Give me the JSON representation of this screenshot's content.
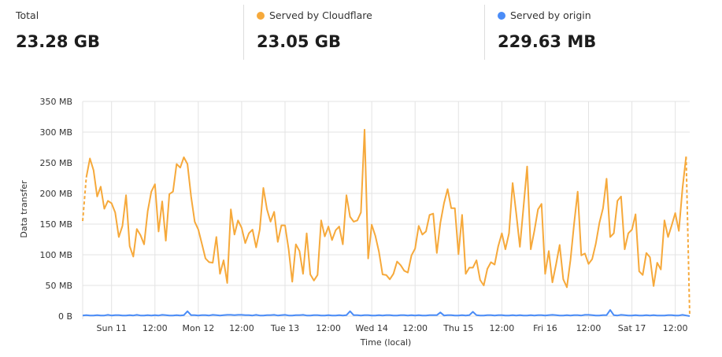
{
  "summary": {
    "total": {
      "label": "Total",
      "value": "23.28 GB"
    },
    "cloudflare": {
      "label": "Served by Cloudflare",
      "value": "23.05 GB",
      "color": "#f6a93b"
    },
    "origin": {
      "label": "Served by origin",
      "value": "229.63 MB",
      "color": "#4a8cf7"
    }
  },
  "chart_data": {
    "type": "line",
    "xlabel": "Time (local)",
    "ylabel": "Data transfer",
    "ylim": [
      0,
      350
    ],
    "yticks": [
      0,
      50,
      100,
      150,
      200,
      250,
      300,
      350
    ],
    "ytick_labels": [
      "0 B",
      "50 MB",
      "100 MB",
      "150 MB",
      "200 MB",
      "250 MB",
      "300 MB",
      "350 MB"
    ],
    "x_start": "Sat 10 16:00",
    "x_step": "1 hour",
    "xticks": [
      {
        "hour": 8,
        "label": "Sun 11"
      },
      {
        "hour": 20,
        "label": "12:00"
      },
      {
        "hour": 32,
        "label": "Mon 12"
      },
      {
        "hour": 44,
        "label": "12:00"
      },
      {
        "hour": 56,
        "label": "Tue 13"
      },
      {
        "hour": 68,
        "label": "12:00"
      },
      {
        "hour": 80,
        "label": "Wed 14"
      },
      {
        "hour": 92,
        "label": "12:00"
      },
      {
        "hour": 104,
        "label": "Thu 15"
      },
      {
        "hour": 116,
        "label": "12:00"
      },
      {
        "hour": 128,
        "label": "Fri 16"
      },
      {
        "hour": 140,
        "label": "12:00"
      },
      {
        "hour": 152,
        "label": "Sat 17"
      },
      {
        "hour": 164,
        "label": "12:00"
      }
    ],
    "grid": true,
    "series": [
      {
        "name": "Served by Cloudflare",
        "color": "#f6a93b",
        "dashed_ends": true,
        "values": [
          155,
          226,
          257,
          238,
          195,
          211,
          175,
          188,
          184,
          169,
          129,
          147,
          197,
          114,
          97,
          142,
          132,
          117,
          171,
          203,
          215,
          138,
          187,
          123,
          199,
          203,
          248,
          242,
          259,
          248,
          195,
          154,
          141,
          118,
          94,
          88,
          87,
          129,
          69,
          91,
          54,
          174,
          133,
          156,
          144,
          119,
          135,
          141,
          112,
          141,
          209,
          174,
          154,
          170,
          121,
          148,
          148,
          109,
          56,
          117,
          106,
          69,
          135,
          68,
          58,
          67,
          156,
          130,
          146,
          124,
          140,
          146,
          117,
          197,
          162,
          154,
          156,
          169,
          304,
          94,
          149,
          131,
          105,
          68,
          67,
          60,
          69,
          89,
          83,
          74,
          71,
          99,
          110,
          147,
          133,
          138,
          165,
          167,
          103,
          152,
          184,
          207,
          176,
          176,
          101,
          165,
          69,
          79,
          79,
          91,
          59,
          50,
          77,
          88,
          84,
          114,
          135,
          109,
          135,
          217,
          167,
          113,
          178,
          244,
          109,
          139,
          174,
          183,
          69,
          106,
          55,
          84,
          116,
          60,
          47,
          92,
          150,
          203,
          99,
          102,
          85,
          93,
          118,
          152,
          176,
          224,
          129,
          135,
          188,
          195,
          109,
          135,
          141,
          166,
          73,
          67,
          103,
          96,
          49,
          87,
          76,
          156,
          129,
          148,
          168,
          139,
          208,
          260,
          0
        ]
      },
      {
        "name": "Served by origin",
        "color": "#4a8cf7",
        "values": [
          1,
          1.5,
          1,
          1,
          1.5,
          1,
          1,
          2,
          1,
          1.5,
          1.5,
          1,
          1,
          1.5,
          1,
          2,
          1,
          1,
          1.5,
          1,
          1.5,
          1,
          2,
          1.5,
          1,
          1,
          1.5,
          1,
          1.5,
          8,
          1.5,
          1.5,
          1,
          1.5,
          1.5,
          1,
          2,
          1.5,
          1,
          1.5,
          2,
          2,
          1.5,
          2,
          2,
          1.5,
          1.5,
          1,
          2,
          1,
          1,
          1.5,
          1.5,
          2,
          1,
          1.5,
          2,
          1,
          1,
          1.5,
          1.5,
          2,
          1,
          1,
          1.5,
          1.5,
          1,
          1,
          1.5,
          1,
          1,
          1.5,
          1,
          1.5,
          8,
          1.5,
          1.5,
          1,
          1.5,
          1.5,
          1,
          1,
          1.5,
          1,
          1.5,
          1.5,
          1,
          1,
          1.5,
          1.5,
          1,
          1.5,
          1,
          1.5,
          1,
          1,
          1.5,
          1.5,
          1.5,
          6,
          1,
          1.5,
          1.5,
          1,
          1,
          1.5,
          1,
          1.5,
          7,
          1.5,
          1,
          1,
          1.5,
          1.5,
          1,
          1.5,
          1.5,
          1,
          1,
          1.5,
          1,
          1.5,
          1,
          1,
          1.5,
          1,
          1.5,
          1.5,
          1,
          1.5,
          2,
          1.5,
          1,
          1,
          1.5,
          1,
          1.5,
          1.5,
          1,
          2,
          2,
          1.5,
          1,
          1,
          1.5,
          1.5,
          10,
          1.5,
          1,
          2,
          1.5,
          1,
          1,
          1.5,
          1,
          1,
          1.5,
          1,
          1.5,
          1,
          1,
          1,
          1.5,
          1.5,
          1,
          1,
          2,
          1,
          0
        ]
      }
    ]
  }
}
